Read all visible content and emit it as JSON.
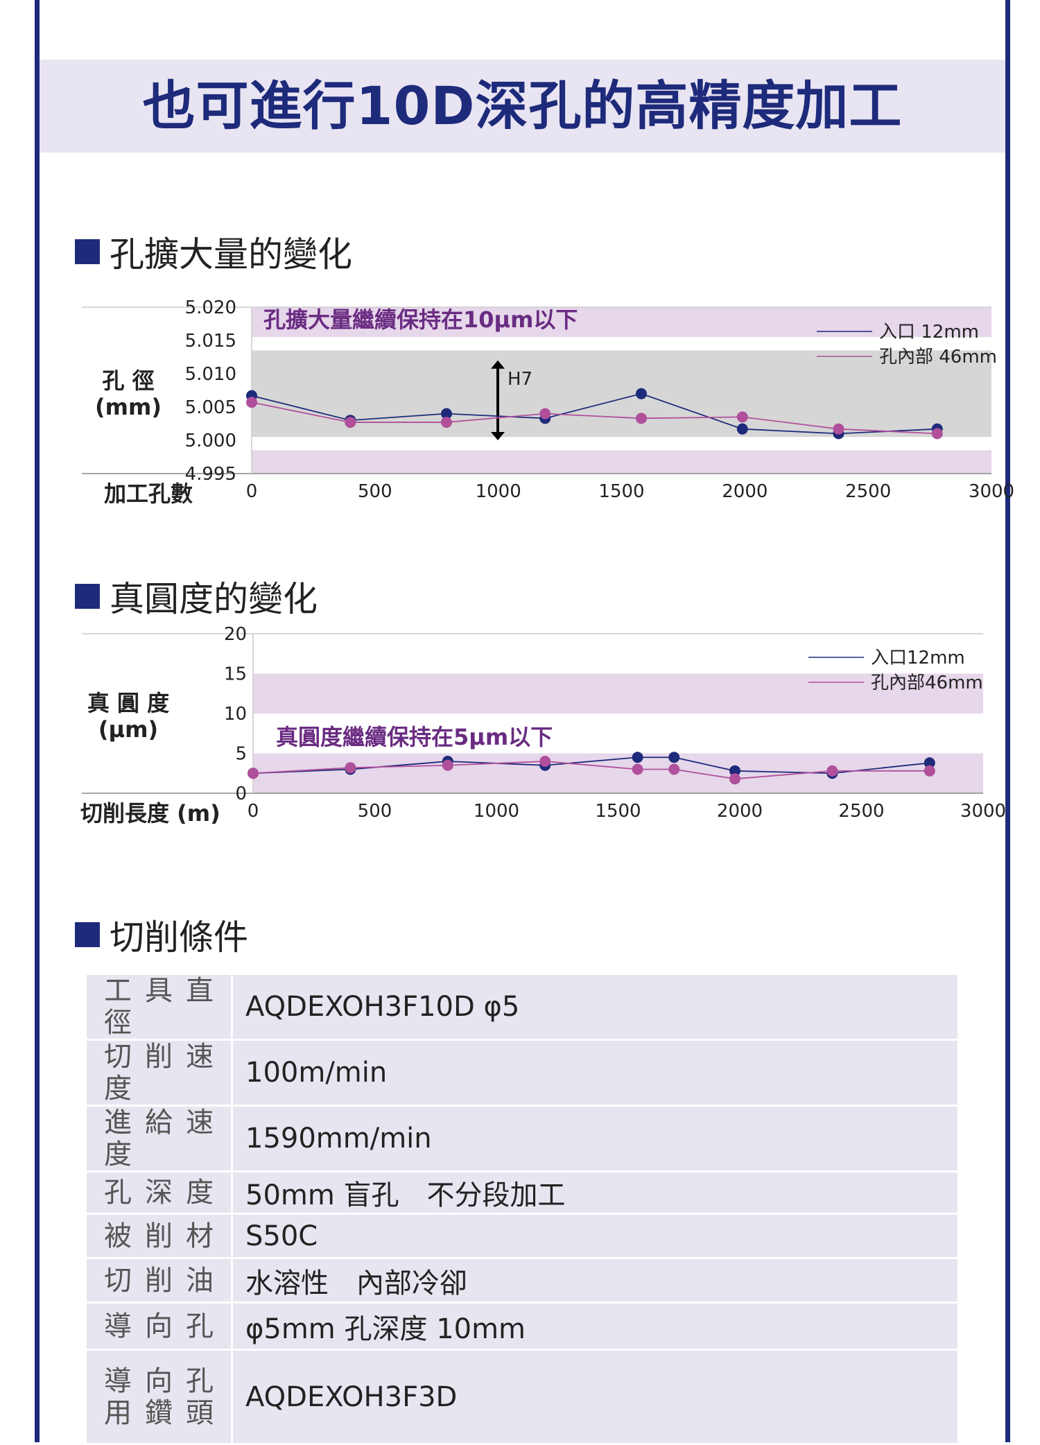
{
  "title": "也可進行10D深孔的高精度加工",
  "sections": {
    "expansion": "孔擴大量的變化",
    "roundness": "真圓度的變化",
    "conditions": "切削條件"
  },
  "colors": {
    "accent": "#1e2a7a",
    "entrance_series": "#1e2a7a",
    "inner_series": "#b0509b",
    "band": "#e6d7ea",
    "h7_band": "#d6d6d6",
    "title_band": "#e8e4f2"
  },
  "chart_data": [
    {
      "type": "line",
      "ylabel_line1": "孔 徑",
      "ylabel_line2": "(mm)",
      "xlabel": "加工孔數",
      "ylim": [
        4.995,
        5.02
      ],
      "xlim": [
        0,
        3000
      ],
      "x_ticks": [
        "0",
        "500",
        "1000",
        "1500",
        "2000",
        "2500",
        "3000"
      ],
      "y_ticks": [
        "5.020",
        "5.015",
        "5.010",
        "5.005",
        "5.000",
        "4.995"
      ],
      "annotation": "孔擴大量繼續保持在10μm以下",
      "tolerance_label": "H7",
      "tolerance_range": [
        5.0,
        5.012
      ],
      "legend_position": "top-right",
      "series": [
        {
          "name": "入口 12mm",
          "x": [
            0,
            400,
            790,
            1190,
            1580,
            1990,
            2380,
            2780
          ],
          "values": [
            5.0067,
            5.003,
            5.004,
            5.0033,
            5.007,
            5.0017,
            5.001,
            5.0017
          ]
        },
        {
          "name": "孔內部 46mm",
          "x": [
            0,
            400,
            790,
            1190,
            1580,
            1990,
            2380,
            2780
          ],
          "values": [
            5.0057,
            5.0027,
            5.0027,
            5.004,
            5.0033,
            5.0035,
            5.0017,
            5.001
          ]
        }
      ]
    },
    {
      "type": "line",
      "ylabel_line1": "真 圓 度",
      "ylabel_line2": "(μm)",
      "xlabel": "切削長度 (m)",
      "ylim": [
        0,
        20
      ],
      "xlim": [
        0,
        3000
      ],
      "x_ticks": [
        "0",
        "500",
        "1000",
        "1500",
        "2000",
        "2500",
        "3000"
      ],
      "y_ticks": [
        "20",
        "15",
        "10",
        "5",
        "0"
      ],
      "annotation": "真圓度繼續保持在5μm以下",
      "legend_position": "top-right",
      "series": [
        {
          "name": "入口12mm",
          "x": [
            0,
            400,
            800,
            1200,
            1580,
            1730,
            1980,
            2380,
            2780
          ],
          "values": [
            2.5,
            3.0,
            4.0,
            3.5,
            4.5,
            4.5,
            2.8,
            2.5,
            3.8
          ]
        },
        {
          "name": "孔內部46mm",
          "x": [
            0,
            400,
            800,
            1200,
            1580,
            1730,
            1980,
            2380,
            2780
          ],
          "values": [
            2.5,
            3.2,
            3.5,
            4.0,
            3.0,
            3.0,
            1.8,
            2.8,
            2.8
          ]
        }
      ]
    }
  ],
  "conditions": [
    {
      "key": "工具直徑",
      "value": "AQDEXOH3F10D φ5"
    },
    {
      "key": "切削速度",
      "value": "100m/min"
    },
    {
      "key": "進給速度",
      "value": "1590mm/min"
    },
    {
      "key": "孔 深 度",
      "value": "50mm 盲孔　不分段加工"
    },
    {
      "key": "被 削 材",
      "value": "S50C"
    },
    {
      "key": "切 削 油",
      "value": "水溶性　內部冷卻"
    },
    {
      "key": "導 向 孔",
      "value": "φ5mm 孔深度 10mm"
    },
    {
      "key": "導 向 孔",
      "key2": "用 鑽 頭",
      "value": "AQDEXOH3F3D"
    }
  ]
}
